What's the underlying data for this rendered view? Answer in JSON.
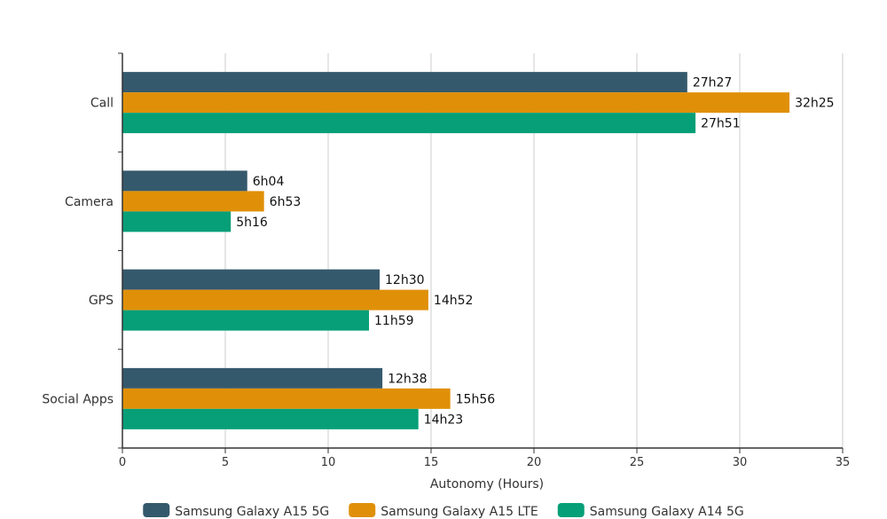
{
  "chart_data": {
    "type": "bar",
    "orientation": "horizontal",
    "categories": [
      "Call",
      "Camera",
      "GPS",
      "Social Apps"
    ],
    "series": [
      {
        "name": "Samsung Galaxy A15 5G",
        "color": "#35596c",
        "values": [
          27.45,
          6.067,
          12.5,
          12.633
        ],
        "labels": [
          "27h27",
          "6h04",
          "12h30",
          "12h38"
        ]
      },
      {
        "name": "Samsung Galaxy A15 LTE",
        "color": "#e09008",
        "values": [
          32.417,
          6.883,
          14.867,
          15.933
        ],
        "labels": [
          "32h25",
          "6h53",
          "14h52",
          "15h56"
        ]
      },
      {
        "name": "Samsung Galaxy A14 5G",
        "color": "#079f77",
        "values": [
          27.85,
          5.267,
          11.983,
          14.383
        ],
        "labels": [
          "27h51",
          "5h16",
          "11h59",
          "14h23"
        ]
      }
    ],
    "xlabel": "Autonomy (Hours)",
    "ylabel": "",
    "xlim": [
      0,
      35
    ],
    "xticks": [
      0,
      5,
      10,
      15,
      20,
      25,
      30,
      35
    ],
    "grid": "vertical",
    "legend_position": "bottom"
  }
}
